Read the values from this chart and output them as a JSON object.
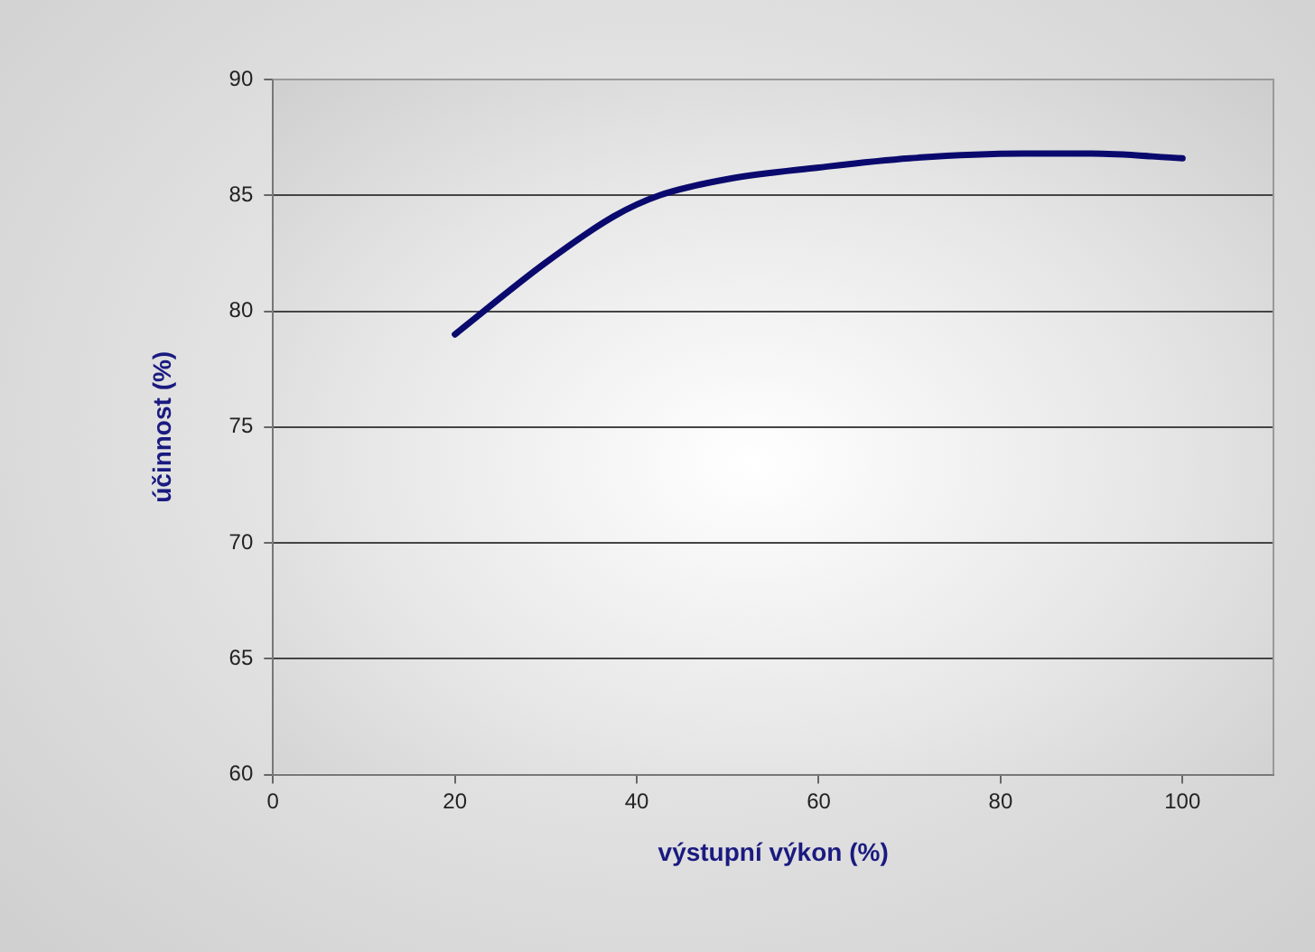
{
  "chart_data": {
    "type": "line",
    "xlabel": "výstupní výkon (%)",
    "ylabel": "účinnost (%)",
    "x": [
      20,
      30,
      37.5,
      42.5,
      50,
      60,
      70,
      82.5,
      90,
      100
    ],
    "series": [
      {
        "color": "#0a0a6e",
        "values": [
          79.0,
          82.1,
          84.1,
          85.0,
          85.7,
          86.2,
          86.6,
          86.8,
          86.8,
          86.6
        ]
      }
    ],
    "xlim": [
      0,
      110
    ],
    "xticks": [
      0,
      20,
      40,
      60,
      80,
      100
    ],
    "ylim": [
      60,
      90
    ],
    "yticks": [
      60,
      65,
      70,
      75,
      80,
      85,
      90
    ],
    "grid": "y",
    "legend": false,
    "marker": "none",
    "line_style": "solid"
  }
}
